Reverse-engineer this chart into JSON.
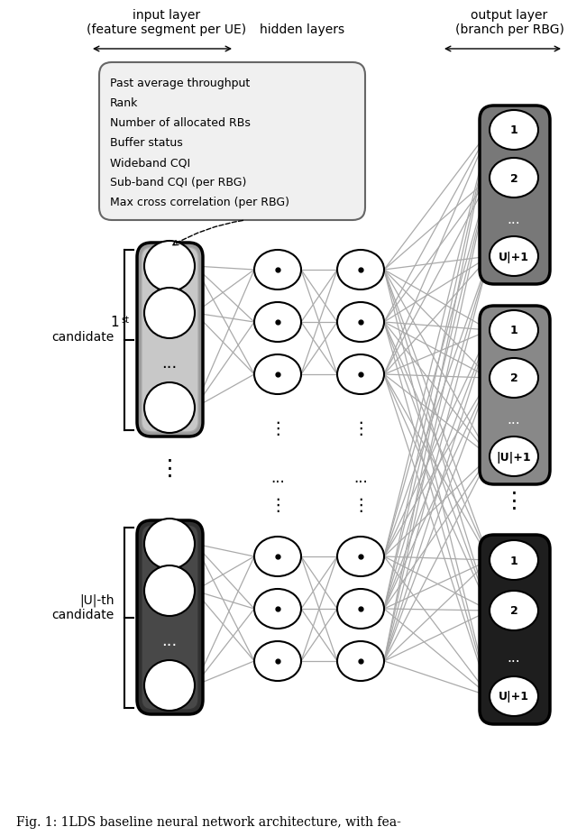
{
  "title": "Fig. 1: 1LDS baseline neural network architecture, with fea-",
  "input_label_line1": "input layer",
  "input_label_line2": "(feature segment per UE)",
  "hidden_label": "hidden layers",
  "output_label_line1": "output layer",
  "output_label_line2": "(branch per RBG)",
  "features": [
    "Past average throughput",
    "Rank",
    "Number of allocated RBs",
    "Buffer status",
    "Wideband CQI",
    "Sub-band CQI (per RBG)",
    "Max cross correlation (per RBG)"
  ],
  "input_bg_color1": "#b0b0b0",
  "input_bg_color1_inner": "#cccccc",
  "input_bg_color2": "#484848",
  "input_bg_color2_inner": "#585858",
  "output_bg_color1": "#787878",
  "output_bg_color2": "#888888",
  "output_bg_color3": "#1e1e1e",
  "node_fill": "#ffffff",
  "node_edge": "#000000",
  "line_color": "#aaaaaa",
  "bg_color": "#ffffff",
  "feat_box_bg": "#f0f0f0",
  "feat_box_edge": "#666666"
}
